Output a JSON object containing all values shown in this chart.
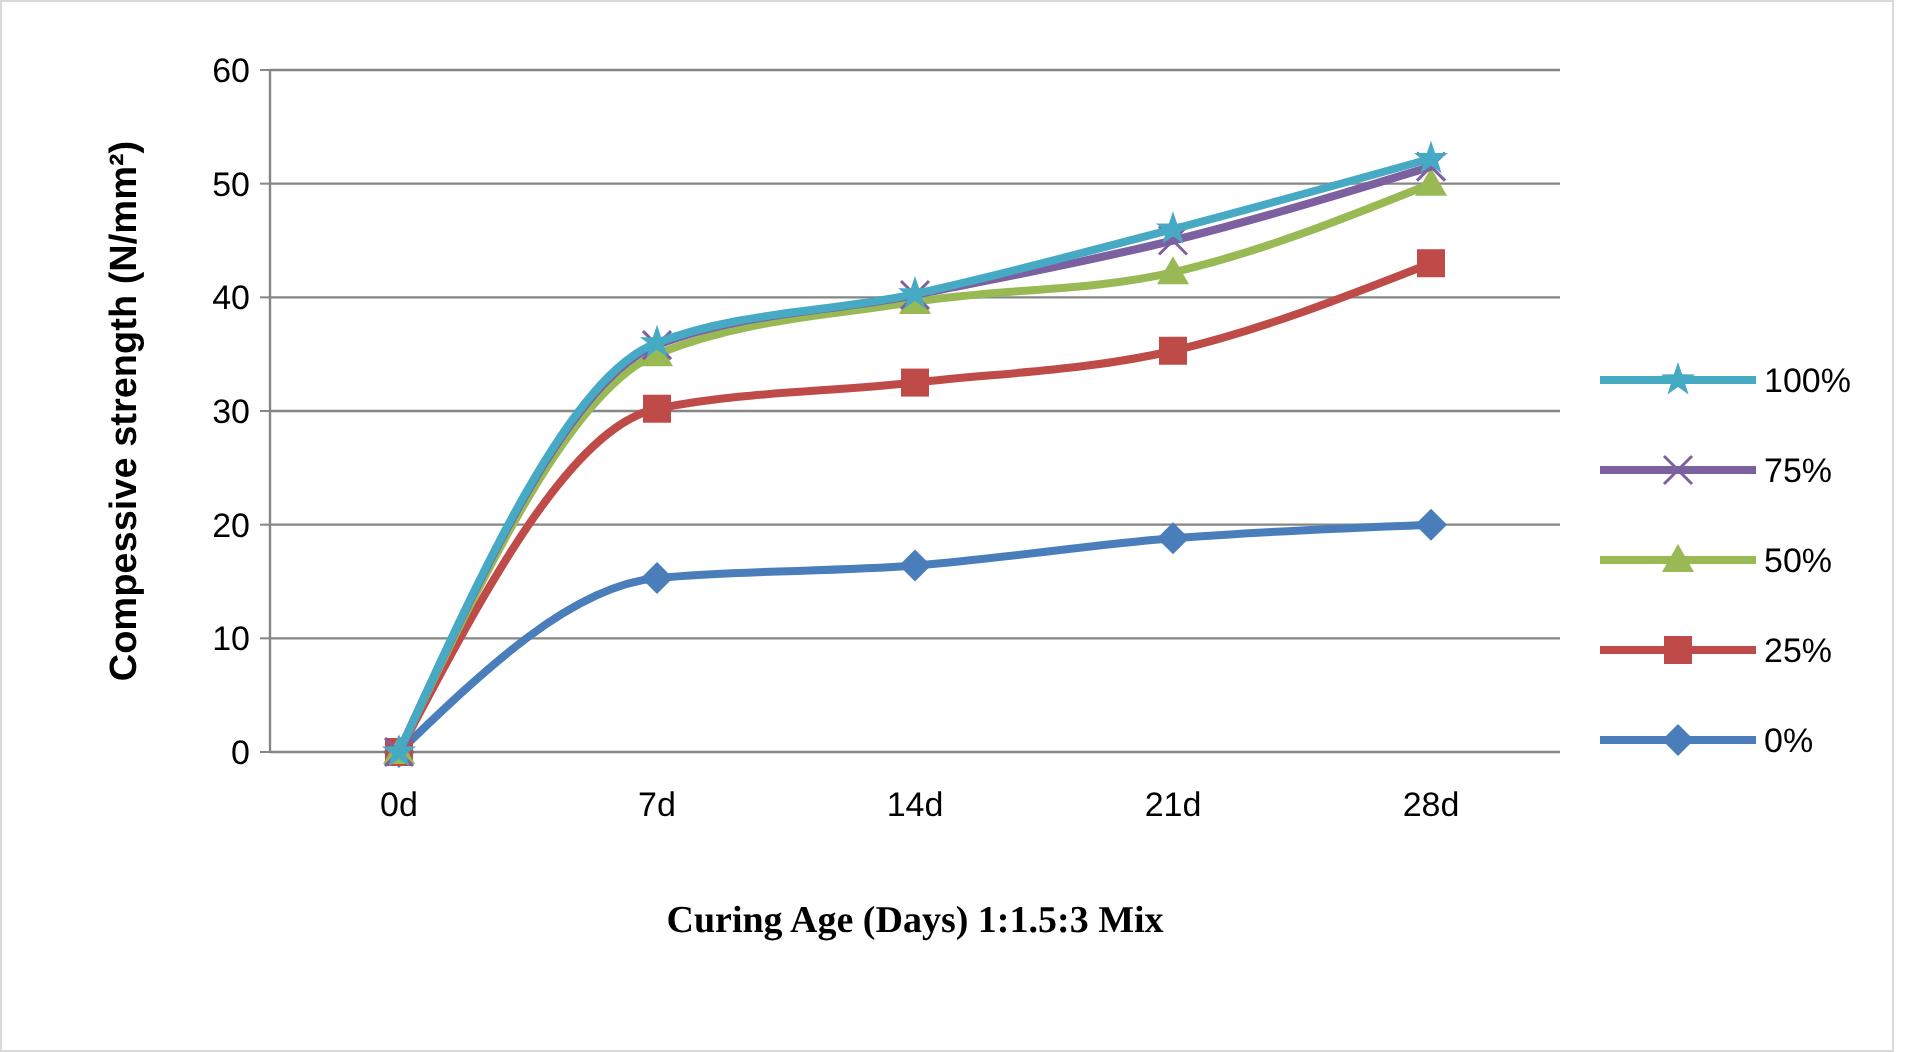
{
  "chart_data": {
    "type": "line",
    "xlabel": "Curing Age (Days) 1:1.5:3 Mix",
    "ylabel": "Compessive strength (N/mm²)",
    "categories": [
      "0d",
      "7d",
      "14d",
      "21d",
      "28d"
    ],
    "ylim": [
      0,
      60
    ],
    "yticks": [
      0,
      10,
      20,
      30,
      40,
      50,
      60
    ],
    "grid": "y",
    "legend": "right",
    "series": [
      {
        "name": "0%",
        "color": "#4a7ebb",
        "marker": "diamond",
        "values": [
          0,
          15.3,
          16.4,
          18.8,
          20
        ]
      },
      {
        "name": "25%",
        "color": "#be4b48",
        "marker": "square",
        "values": [
          0,
          30.2,
          32.5,
          35.3,
          43
        ]
      },
      {
        "name": "50%",
        "color": "#98b954",
        "marker": "triangle",
        "values": [
          0,
          35,
          39.6,
          42.2,
          50
        ]
      },
      {
        "name": "75%",
        "color": "#7d60a0",
        "marker": "cross",
        "values": [
          0,
          35.8,
          40.2,
          45,
          51.5
        ]
      },
      {
        "name": "100%",
        "color": "#46aac5",
        "marker": "star",
        "values": [
          0,
          36,
          40.3,
          46,
          52.2
        ]
      }
    ]
  }
}
